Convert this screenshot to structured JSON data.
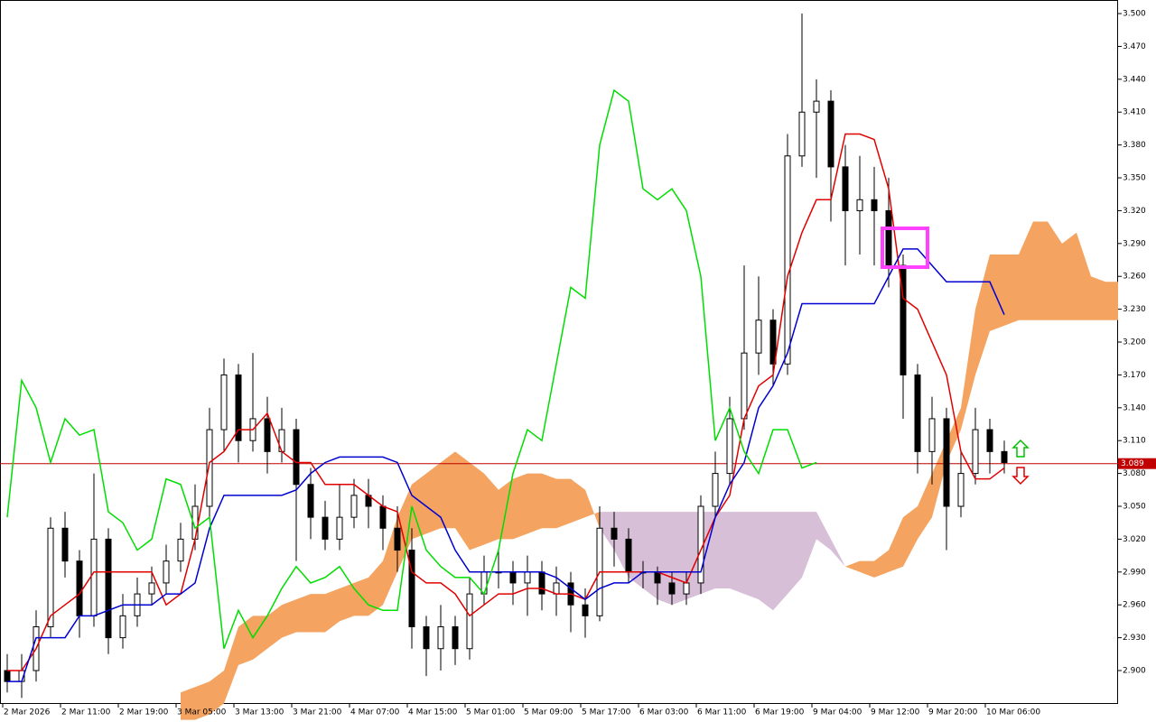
{
  "chart_data": {
    "type": "candlestick",
    "x_labels": [
      "2 Mar 2026",
      "2 Mar 11:00",
      "2 Mar 19:00",
      "3 Mar 05:00",
      "3 Mar 13:00",
      "3 Mar 21:00",
      "4 Mar 07:00",
      "4 Mar 15:00",
      "5 Mar 01:00",
      "5 Mar 09:00",
      "5 Mar 17:00",
      "6 Mar 03:00",
      "6 Mar 11:00",
      "6 Mar 19:00",
      "9 Mar 04:00",
      "9 Mar 12:00",
      "9 Mar 20:00",
      "10 Mar 06:00"
    ],
    "ylim": [
      2.8695,
      3.5124
    ],
    "yticks": [
      {
        "value": 3.5,
        "label": "3.500"
      },
      {
        "value": 3.47,
        "label": "3.470"
      },
      {
        "value": 3.44,
        "label": "3.440"
      },
      {
        "value": 3.41,
        "label": "3.410"
      },
      {
        "value": 3.38,
        "label": "3.380"
      },
      {
        "value": 3.35,
        "label": "3.350"
      },
      {
        "value": 3.32,
        "label": "3.320"
      },
      {
        "value": 3.29,
        "label": "3.290"
      },
      {
        "value": 3.26,
        "label": "3.260"
      },
      {
        "value": 3.23,
        "label": "3.230"
      },
      {
        "value": 3.2,
        "label": "3.200"
      },
      {
        "value": 3.17,
        "label": "3.170"
      },
      {
        "value": 3.14,
        "label": "3.140"
      },
      {
        "value": 3.11,
        "label": "3.110"
      },
      {
        "value": 3.08,
        "label": "3.080"
      },
      {
        "value": 3.05,
        "label": "3.050"
      },
      {
        "value": 3.02,
        "label": "3.020"
      },
      {
        "value": 2.99,
        "label": "2.990"
      },
      {
        "value": 2.96,
        "label": "2.960"
      },
      {
        "value": 2.93,
        "label": "2.930"
      },
      {
        "value": 2.9,
        "label": "2.900"
      }
    ],
    "candles": {
      "open": [
        2.9,
        2.89,
        2.9,
        2.94,
        3.03,
        3.0,
        2.95,
        3.02,
        2.93,
        2.95,
        2.97,
        2.98,
        3.0,
        3.02,
        3.05,
        3.12,
        3.17,
        3.11,
        3.13,
        3.1,
        3.12,
        3.07,
        3.04,
        3.02,
        3.04,
        3.06,
        3.05,
        3.03,
        3.01,
        2.94,
        2.92,
        2.94,
        2.92,
        2.97,
        2.99,
        2.99,
        2.98,
        2.99,
        2.97,
        2.98,
        2.96,
        2.95,
        3.03,
        3.02,
        2.99,
        2.99,
        2.98,
        2.97,
        2.98,
        3.05,
        3.08,
        3.13,
        3.19,
        3.22,
        3.18,
        3.37,
        3.41,
        3.42,
        3.36,
        3.32,
        3.33,
        3.32,
        3.27,
        3.17,
        3.1,
        3.13,
        3.05,
        3.08,
        3.12,
        3.1
      ],
      "high": [
        2.915,
        2.915,
        2.955,
        3.04,
        3.045,
        3.01,
        3.08,
        3.03,
        2.97,
        2.985,
        2.995,
        3.015,
        3.035,
        3.07,
        3.14,
        3.185,
        3.18,
        3.19,
        3.15,
        3.14,
        3.13,
        3.085,
        3.055,
        3.07,
        3.075,
        3.075,
        3.06,
        3.05,
        3.03,
        2.95,
        2.96,
        2.95,
        2.985,
        3.005,
        3.01,
        3.0,
        3.005,
        3.0,
        2.995,
        2.99,
        2.975,
        3.05,
        3.045,
        3.03,
        3.0,
        2.995,
        2.99,
        2.99,
        3.06,
        3.1,
        3.15,
        3.27,
        3.26,
        3.23,
        3.39,
        3.5,
        3.44,
        3.43,
        3.38,
        3.37,
        3.36,
        3.35,
        3.28,
        3.18,
        3.15,
        3.14,
        3.1,
        3.14,
        3.13,
        3.11
      ],
      "low": [
        2.88,
        2.875,
        2.89,
        2.93,
        2.985,
        2.93,
        2.94,
        2.915,
        2.92,
        2.94,
        2.96,
        2.97,
        2.99,
        3.01,
        3.04,
        3.1,
        3.09,
        3.1,
        3.08,
        3.09,
        3.0,
        3.02,
        3.01,
        3.01,
        3.03,
        3.03,
        3.01,
        2.99,
        2.92,
        2.895,
        2.9,
        2.905,
        2.91,
        2.96,
        2.975,
        2.96,
        2.95,
        2.955,
        2.95,
        2.935,
        2.93,
        2.945,
        2.995,
        2.98,
        2.975,
        2.96,
        2.96,
        2.96,
        2.97,
        3.04,
        3.07,
        3.12,
        3.17,
        3.16,
        3.17,
        3.36,
        3.35,
        3.31,
        3.27,
        3.28,
        3.27,
        3.25,
        3.13,
        3.08,
        3.07,
        3.01,
        3.04,
        3.07,
        3.08,
        3.08
      ],
      "close": [
        2.89,
        2.9,
        2.94,
        3.03,
        3.0,
        2.95,
        3.02,
        2.93,
        2.95,
        2.97,
        2.98,
        3.0,
        3.02,
        3.05,
        3.12,
        3.17,
        3.11,
        3.13,
        3.1,
        3.12,
        3.07,
        3.04,
        3.02,
        3.04,
        3.06,
        3.05,
        3.03,
        3.01,
        2.94,
        2.92,
        2.94,
        2.92,
        2.97,
        2.99,
        2.99,
        2.98,
        2.99,
        2.97,
        2.98,
        2.96,
        2.95,
        3.03,
        3.02,
        2.99,
        2.99,
        2.98,
        2.97,
        2.98,
        3.05,
        3.08,
        3.13,
        3.19,
        3.22,
        3.18,
        3.37,
        3.41,
        3.42,
        3.36,
        3.32,
        3.33,
        3.32,
        3.27,
        3.17,
        3.1,
        3.13,
        3.05,
        3.08,
        3.12,
        3.1,
        3.09
      ],
      "bull_color": "#ffffff",
      "bear_color": "#000000"
    },
    "lines": [
      {
        "color": "#e00000",
        "values": [
          2.9,
          2.9,
          2.92,
          2.95,
          2.96,
          2.97,
          2.99,
          2.99,
          2.99,
          2.99,
          2.99,
          2.96,
          2.97,
          3.02,
          3.09,
          3.1,
          3.12,
          3.12,
          3.135,
          3.1,
          3.09,
          3.09,
          3.07,
          3.07,
          3.07,
          3.06,
          3.05,
          3.045,
          2.99,
          2.98,
          2.98,
          2.97,
          2.95,
          2.96,
          2.97,
          2.97,
          2.975,
          2.975,
          2.97,
          2.97,
          2.965,
          2.99,
          2.99,
          2.99,
          2.99,
          2.99,
          2.985,
          2.98,
          3.01,
          3.04,
          3.06,
          3.13,
          3.16,
          3.17,
          3.26,
          3.3,
          3.33,
          3.33,
          3.39,
          3.39,
          3.385,
          3.34,
          3.24,
          3.23,
          3.2,
          3.17,
          3.1,
          3.075,
          3.075,
          3.085
        ]
      },
      {
        "color": "#0000d0",
        "values": [
          2.89,
          2.89,
          2.93,
          2.93,
          2.93,
          2.95,
          2.95,
          2.955,
          2.96,
          2.96,
          2.96,
          2.97,
          2.97,
          2.98,
          3.03,
          3.06,
          3.06,
          3.06,
          3.06,
          3.06,
          3.065,
          3.08,
          3.09,
          3.095,
          3.095,
          3.095,
          3.095,
          3.09,
          3.06,
          3.05,
          3.04,
          3.01,
          2.99,
          2.99,
          2.99,
          2.99,
          2.99,
          2.99,
          2.985,
          2.975,
          2.965,
          2.975,
          2.98,
          2.98,
          2.99,
          2.99,
          2.99,
          2.99,
          2.99,
          3.04,
          3.07,
          3.09,
          3.14,
          3.16,
          3.19,
          3.235,
          3.235,
          3.235,
          3.235,
          3.235,
          3.235,
          3.26,
          3.285,
          3.285,
          3.27,
          3.255,
          3.255,
          3.255,
          3.255,
          3.225
        ]
      },
      {
        "color": "#00dd00",
        "values": [
          3.04,
          3.165,
          3.14,
          3.09,
          3.13,
          3.115,
          3.12,
          3.045,
          3.035,
          3.01,
          3.02,
          3.075,
          3.07,
          3.03,
          3.04,
          2.92,
          2.955,
          2.93,
          2.95,
          2.975,
          2.995,
          2.98,
          2.985,
          2.995,
          2.975,
          2.96,
          2.955,
          2.955,
          3.05,
          3.01,
          2.995,
          2.985,
          2.985,
          2.97,
          3.01,
          3.08,
          3.12,
          3.11,
          3.18,
          3.25,
          3.24,
          3.38,
          3.43,
          3.42,
          3.34,
          3.33,
          3.34,
          3.32,
          3.26,
          3.11,
          3.14,
          3.1,
          3.08,
          3.12,
          3.12,
          3.085,
          3.09
        ]
      }
    ],
    "cloud": {
      "bull_color": "#f4a460",
      "bear_color": "#d8bfd8",
      "span_a": [
        null,
        null,
        null,
        null,
        null,
        null,
        null,
        null,
        null,
        null,
        null,
        null,
        2.88,
        2.885,
        2.89,
        2.9,
        2.94,
        2.95,
        2.95,
        2.96,
        2.965,
        2.97,
        2.97,
        2.975,
        2.98,
        2.985,
        3.0,
        3.04,
        3.07,
        3.08,
        3.09,
        3.1,
        3.09,
        3.08,
        3.065,
        3.075,
        3.08,
        3.08,
        3.075,
        3.075,
        3.065,
        3.03,
        3.01,
        2.985,
        2.975,
        2.965,
        2.96,
        2.965,
        2.97,
        2.975,
        2.975,
        2.97,
        2.965,
        2.955,
        2.97,
        2.985,
        3.02,
        3.01,
        2.995,
        3.0,
        3.0,
        3.01,
        3.04,
        3.05,
        3.08,
        3.11,
        3.14,
        3.23,
        3.28,
        3.28,
        3.28,
        3.31,
        3.31,
        3.29,
        3.3,
        3.26,
        3.255,
        3.255
      ],
      "span_b": [
        null,
        null,
        null,
        null,
        null,
        null,
        null,
        null,
        null,
        null,
        null,
        null,
        2.855,
        2.855,
        2.86,
        2.87,
        2.905,
        2.91,
        2.92,
        2.93,
        2.935,
        2.935,
        2.935,
        2.945,
        2.95,
        2.95,
        2.96,
        2.99,
        3.02,
        3.025,
        3.03,
        3.03,
        3.01,
        3.015,
        3.02,
        3.02,
        3.025,
        3.03,
        3.03,
        3.035,
        3.04,
        3.045,
        3.045,
        3.045,
        3.045,
        3.045,
        3.045,
        3.045,
        3.045,
        3.045,
        3.045,
        3.045,
        3.045,
        3.045,
        3.045,
        3.045,
        3.045,
        3.02,
        2.995,
        2.99,
        2.985,
        2.99,
        2.995,
        3.02,
        3.04,
        3.09,
        3.12,
        3.17,
        3.21,
        3.215,
        3.22,
        3.22,
        3.22,
        3.22,
        3.22,
        3.22,
        3.22,
        3.22
      ]
    },
    "price_line": 3.089,
    "price_line_color": "#c00000"
  }
}
